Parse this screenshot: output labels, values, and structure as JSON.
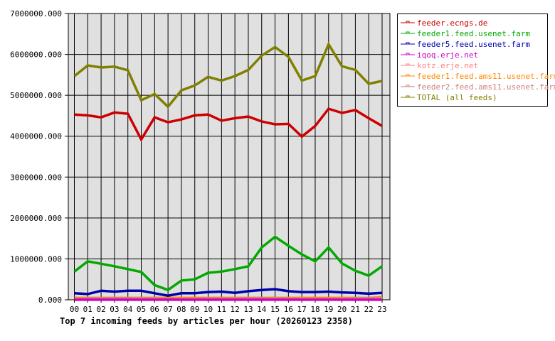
{
  "chart_data": {
    "type": "line",
    "title": "Top 7 incoming feeds by articles per hour (20260123 2358)",
    "xlabel": "",
    "ylabel": "",
    "categories": [
      "00",
      "01",
      "02",
      "03",
      "04",
      "05",
      "06",
      "07",
      "08",
      "09",
      "10",
      "11",
      "12",
      "13",
      "14",
      "15",
      "16",
      "17",
      "18",
      "19",
      "20",
      "21",
      "22",
      "23"
    ],
    "ylim": [
      0,
      7000000
    ],
    "yticks": [
      0,
      1000000,
      2000000,
      3000000,
      4000000,
      5000000,
      6000000,
      7000000
    ],
    "ytick_labels": [
      "0.000",
      "1000000.000",
      "2000000.000",
      "3000000.000",
      "4000000.000",
      "5000000.000",
      "6000000.000",
      "7000000.000"
    ],
    "grid": true,
    "legend_position": "right",
    "series": [
      {
        "name": "feeder.ecngs.de",
        "color": "#cc0000",
        "values": [
          4530000,
          4510000,
          4460000,
          4580000,
          4550000,
          3920000,
          4460000,
          4340000,
          4410000,
          4510000,
          4530000,
          4380000,
          4440000,
          4480000,
          4360000,
          4290000,
          4300000,
          3990000,
          4250000,
          4670000,
          4570000,
          4640000,
          4440000,
          4250000
        ]
      },
      {
        "name": "feeder1.feed.usenet.farm",
        "color": "#00aa00",
        "values": [
          690000,
          940000,
          880000,
          820000,
          750000,
          680000,
          360000,
          240000,
          470000,
          500000,
          660000,
          690000,
          750000,
          820000,
          1280000,
          1540000,
          1320000,
          1110000,
          940000,
          1280000,
          890000,
          710000,
          590000,
          820000
        ]
      },
      {
        "name": "feeder5.feed.usenet.farm",
        "color": "#0000aa",
        "values": [
          160000,
          140000,
          220000,
          200000,
          220000,
          220000,
          160000,
          100000,
          160000,
          160000,
          190000,
          200000,
          170000,
          210000,
          240000,
          260000,
          210000,
          190000,
          190000,
          200000,
          180000,
          170000,
          150000,
          170000
        ]
      },
      {
        "name": "iqoq.erje.net",
        "color": "#cc00cc",
        "values": [
          2000,
          2000,
          2000,
          2000,
          2000,
          2000,
          2000,
          2000,
          2000,
          2000,
          2000,
          2000,
          2000,
          2000,
          2000,
          2000,
          2000,
          2000,
          2000,
          2000,
          2000,
          2000,
          2000,
          2000
        ]
      },
      {
        "name": "kotz.erje.net",
        "color": "#ff8080",
        "values": [
          5000,
          5000,
          5000,
          5000,
          5000,
          5000,
          5000,
          5000,
          5000,
          5000,
          5000,
          5000,
          5000,
          5000,
          5000,
          5000,
          5000,
          5000,
          5000,
          5000,
          5000,
          5000,
          5000,
          5000
        ]
      },
      {
        "name": "feeder1.feed.ams11.usenet.farm",
        "color": "#ff8800",
        "values": [
          40000,
          30000,
          20000,
          20000,
          20000,
          30000,
          30000,
          40000,
          40000,
          40000,
          30000,
          30000,
          30000,
          20000,
          20000,
          30000,
          30000,
          40000,
          40000,
          40000,
          40000,
          20000,
          20000,
          40000
        ]
      },
      {
        "name": "feeder2.feed.ams11.usenet.farm",
        "color": "#cc8080",
        "values": [
          45000,
          45000,
          45000,
          45000,
          45000,
          45000,
          45000,
          45000,
          45000,
          45000,
          45000,
          45000,
          45000,
          45000,
          45000,
          45000,
          45000,
          45000,
          45000,
          45000,
          45000,
          45000,
          45000,
          60000
        ]
      },
      {
        "name": "TOTAL (all feeds)",
        "color": "#808000",
        "values": [
          5470000,
          5730000,
          5680000,
          5700000,
          5610000,
          4880000,
          5030000,
          4720000,
          5120000,
          5240000,
          5450000,
          5360000,
          5470000,
          5620000,
          5970000,
          6180000,
          5940000,
          5360000,
          5470000,
          6250000,
          5710000,
          5620000,
          5280000,
          5350000
        ]
      }
    ]
  },
  "colors": {
    "plot_background": "#e0e0e0",
    "grid": "#000000",
    "background": "#ffffff"
  }
}
